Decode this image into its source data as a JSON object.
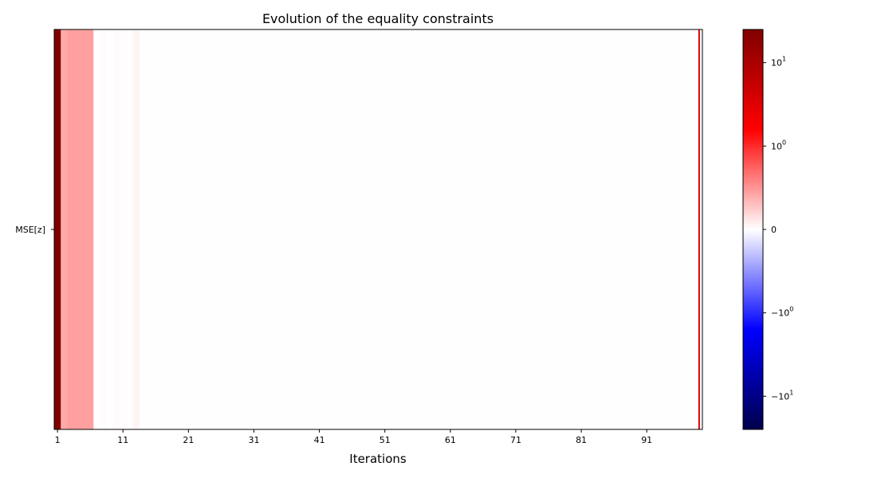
{
  "chart_data": {
    "type": "heatmap",
    "title": "Evolution of the equality constraints",
    "xlabel": "Iterations",
    "ylabel": "",
    "rows": [
      "MSE[z]"
    ],
    "x_start": 1,
    "x_end": 99,
    "x_ticks": [
      1,
      11,
      21,
      31,
      41,
      51,
      61,
      71,
      81,
      91
    ],
    "values": [
      [
        40.0,
        0.4,
        0.45,
        0.45,
        0.45,
        0.45,
        0.01,
        0.015,
        0.002,
        0.02,
        0.008,
        0.003,
        0.05,
        0.004,
        0.004,
        0.004,
        0.004,
        0.004,
        0.004,
        0.004,
        0.004,
        0.004,
        0.004,
        0.004,
        0.004,
        0.004,
        0.004,
        0.004,
        0.004,
        0.004,
        0.004,
        0.004,
        0.004,
        0.004,
        0.004,
        0.004,
        0.004,
        0.004,
        0.004,
        0.004,
        0.004,
        0.004,
        0.004,
        0.004,
        0.004,
        0.004,
        0.004,
        0.004,
        0.004,
        0.004,
        0.004,
        0.004,
        0.004,
        0.004,
        0.004,
        0.004,
        0.004,
        0.004,
        0.004,
        0.004,
        0.004,
        0.004,
        0.004,
        0.004,
        0.004,
        0.004,
        0.004,
        0.004,
        0.004,
        0.004,
        0.004,
        0.004,
        0.004,
        0.004,
        0.004,
        0.004,
        0.004,
        0.004,
        0.004,
        0.004,
        0.004,
        0.004,
        0.004,
        0.004,
        0.004,
        0.004,
        0.004,
        0.004,
        0.004,
        0.004,
        0.004,
        0.004,
        0.004,
        0.004,
        0.004,
        0.004,
        0.004,
        0.004,
        0.004
      ]
    ],
    "vertical_marker": {
      "x": 99,
      "color": "#e00000"
    },
    "colorbar": {
      "colormap": "seismic",
      "scale": "symlog",
      "range": [
        -25,
        25
      ],
      "ticks": [
        {
          "value": 10,
          "base": "10",
          "exp": "1"
        },
        {
          "value": 1,
          "base": "10",
          "exp": "0"
        },
        {
          "value": 0,
          "base": "0",
          "exp": ""
        },
        {
          "value": -1,
          "base": "−10",
          "exp": "0"
        },
        {
          "value": -10,
          "base": "−10",
          "exp": "1"
        }
      ]
    },
    "grid": false
  }
}
